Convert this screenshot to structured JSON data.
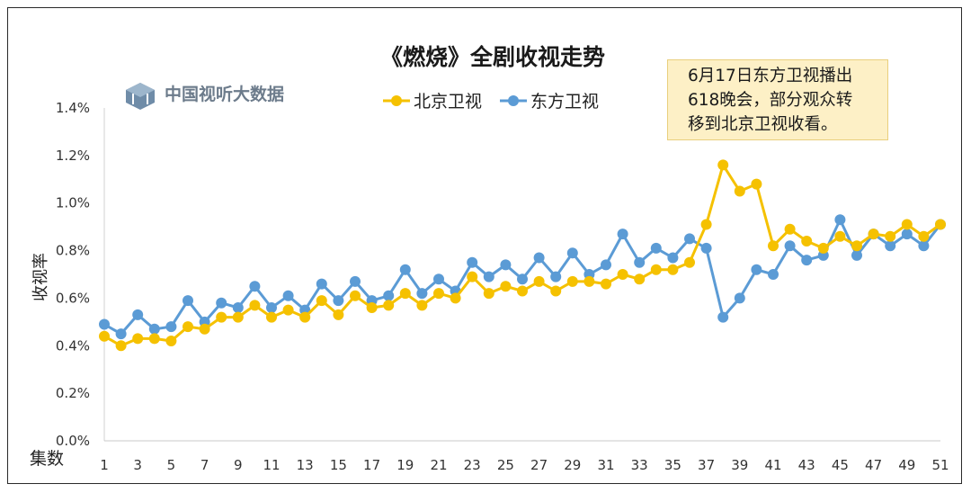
{
  "chart_data": {
    "type": "line",
    "title": "《燃烧》全剧收视走势",
    "ylabel": "收视率",
    "xlabel": "集数",
    "ylim": [
      0,
      1.4
    ],
    "y_ticks": [
      "0.0%",
      "0.2%",
      "0.4%",
      "0.6%",
      "0.8%",
      "1.0%",
      "1.2%",
      "1.4%"
    ],
    "x_ticks": [
      "1",
      "3",
      "5",
      "7",
      "9",
      "11",
      "13",
      "15",
      "17",
      "19",
      "21",
      "23",
      "25",
      "27",
      "29",
      "31",
      "33",
      "35",
      "37",
      "39",
      "41",
      "43",
      "45",
      "47",
      "49",
      "51"
    ],
    "x": [
      1,
      2,
      3,
      4,
      5,
      6,
      7,
      8,
      9,
      10,
      11,
      12,
      13,
      14,
      15,
      16,
      17,
      18,
      19,
      20,
      21,
      22,
      23,
      24,
      25,
      26,
      27,
      28,
      29,
      30,
      31,
      32,
      33,
      34,
      35,
      36,
      37,
      38,
      39,
      40,
      41,
      42,
      43,
      44,
      45,
      46,
      47,
      48,
      49,
      50,
      51
    ],
    "legend_position": "top-center",
    "grid": false,
    "series": [
      {
        "name": "北京卫视",
        "color": "#f5c100",
        "values": [
          0.44,
          0.4,
          0.43,
          0.43,
          0.42,
          0.48,
          0.47,
          0.52,
          0.52,
          0.57,
          0.52,
          0.55,
          0.52,
          0.59,
          0.53,
          0.61,
          0.56,
          0.57,
          0.62,
          0.57,
          0.62,
          0.6,
          0.69,
          0.62,
          0.65,
          0.63,
          0.67,
          0.63,
          0.67,
          0.67,
          0.66,
          0.7,
          0.68,
          0.72,
          0.72,
          0.75,
          0.91,
          1.16,
          1.05,
          1.08,
          0.82,
          0.89,
          0.84,
          0.81,
          0.86,
          0.82,
          0.87,
          0.86,
          0.91,
          0.86,
          0.91
        ]
      },
      {
        "name": "东方卫视",
        "color": "#5b9bd5",
        "values": [
          0.49,
          0.45,
          0.53,
          0.47,
          0.48,
          0.59,
          0.5,
          0.58,
          0.56,
          0.65,
          0.56,
          0.61,
          0.55,
          0.66,
          0.59,
          0.67,
          0.59,
          0.61,
          0.72,
          0.62,
          0.68,
          0.63,
          0.75,
          0.69,
          0.74,
          0.68,
          0.77,
          0.69,
          0.79,
          0.7,
          0.74,
          0.87,
          0.75,
          0.81,
          0.77,
          0.85,
          0.81,
          0.52,
          0.6,
          0.72,
          0.7,
          0.82,
          0.76,
          0.78,
          0.93,
          0.78,
          0.87,
          0.82,
          0.87,
          0.82,
          0.91
        ]
      }
    ]
  },
  "brand": {
    "name": "中国视听大数据",
    "icon": "cvb-logo-icon"
  },
  "annotation": {
    "lines": [
      "6月17日东方卫视播出",
      "618晚会，部分观众转",
      "移到北京卫视收看。"
    ]
  }
}
